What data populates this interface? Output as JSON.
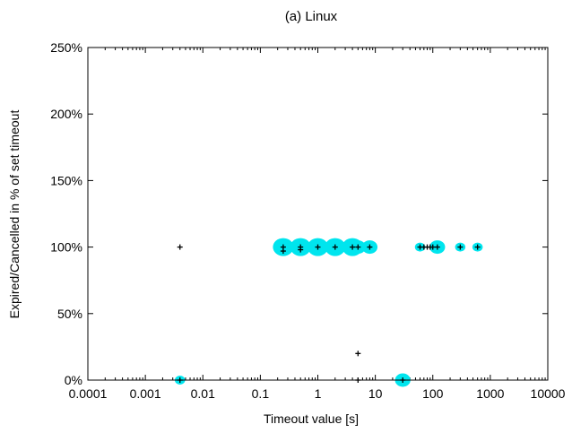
{
  "chart_data": {
    "type": "scatter",
    "title": "(a) Linux",
    "xlabel": "Timeout value [s]",
    "ylabel": "Expired/Cancelled in % of set timeout",
    "x_scale": "log",
    "xlim": [
      0.0001,
      10000
    ],
    "ylim": [
      0,
      250
    ],
    "x_ticks": [
      "0.0001",
      "0.001",
      "0.01",
      "0.1",
      "1",
      "10",
      "100",
      "1000",
      "10000"
    ],
    "y_ticks": [
      "0%",
      "50%",
      "100%",
      "150%",
      "200%",
      "250%"
    ],
    "grid": false,
    "legend": "none",
    "series": [
      {
        "marker": "circle",
        "color": "#00e5ee",
        "points": [
          {
            "x": 0.004,
            "y": 0,
            "size": 1
          },
          {
            "x": 0.25,
            "y": 100,
            "size": 3
          },
          {
            "x": 0.5,
            "y": 100,
            "size": 3
          },
          {
            "x": 1,
            "y": 100,
            "size": 3
          },
          {
            "x": 2,
            "y": 100,
            "size": 3
          },
          {
            "x": 4,
            "y": 100,
            "size": 3
          },
          {
            "x": 5,
            "y": 100,
            "size": 2
          },
          {
            "x": 8,
            "y": 100,
            "size": 2
          },
          {
            "x": 30,
            "y": 0,
            "size": 2
          },
          {
            "x": 60,
            "y": 100,
            "size": 1
          },
          {
            "x": 120,
            "y": 100,
            "size": 2
          },
          {
            "x": 300,
            "y": 100,
            "size": 1
          },
          {
            "x": 600,
            "y": 100,
            "size": 1
          }
        ]
      },
      {
        "marker": "plus",
        "color": "#000000",
        "points": [
          {
            "x": 0.004,
            "y": 100
          },
          {
            "x": 0.004,
            "y": 0
          },
          {
            "x": 0.25,
            "y": 100
          },
          {
            "x": 0.25,
            "y": 97
          },
          {
            "x": 0.5,
            "y": 100
          },
          {
            "x": 0.5,
            "y": 98
          },
          {
            "x": 1,
            "y": 100
          },
          {
            "x": 2,
            "y": 100
          },
          {
            "x": 4,
            "y": 100
          },
          {
            "x": 5,
            "y": 100
          },
          {
            "x": 5,
            "y": 20
          },
          {
            "x": 5,
            "y": 0
          },
          {
            "x": 8,
            "y": 100
          },
          {
            "x": 30,
            "y": 0
          },
          {
            "x": 60,
            "y": 100
          },
          {
            "x": 70,
            "y": 100
          },
          {
            "x": 80,
            "y": 100
          },
          {
            "x": 90,
            "y": 100
          },
          {
            "x": 100,
            "y": 100
          },
          {
            "x": 120,
            "y": 100
          },
          {
            "x": 300,
            "y": 100
          },
          {
            "x": 600,
            "y": 100
          }
        ]
      }
    ]
  }
}
